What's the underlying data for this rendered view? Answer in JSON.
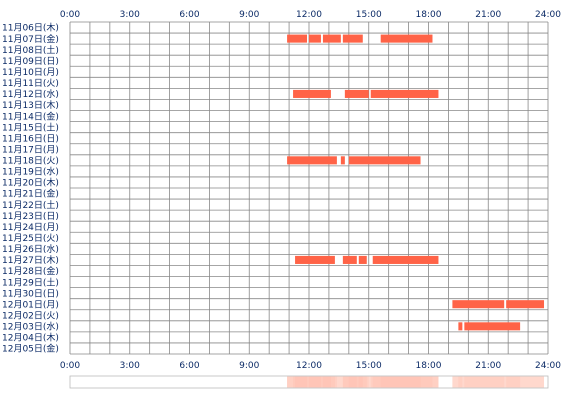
{
  "chart_data": {
    "type": "timeline",
    "x_unit": "hour",
    "xlim": [
      0,
      24
    ],
    "x_ticks": [
      "0:00",
      "3:00",
      "6:00",
      "9:00",
      "12:00",
      "15:00",
      "18:00",
      "21:00",
      "24:00"
    ],
    "rows": [
      {
        "label": "11月06日(木)",
        "segments": []
      },
      {
        "label": "11月07日(金)",
        "segments": [
          [
            10.9,
            11.9
          ],
          [
            12.0,
            12.6
          ],
          [
            12.7,
            13.6
          ],
          [
            13.7,
            14.7
          ],
          [
            15.6,
            18.2
          ]
        ]
      },
      {
        "label": "11月08日(土)",
        "segments": []
      },
      {
        "label": "11月09日(日)",
        "segments": []
      },
      {
        "label": "11月10日(月)",
        "segments": []
      },
      {
        "label": "11月11日(火)",
        "segments": []
      },
      {
        "label": "11月12日(水)",
        "segments": [
          [
            11.2,
            13.1
          ],
          [
            13.8,
            15.0
          ],
          [
            15.1,
            18.5
          ]
        ]
      },
      {
        "label": "11月13日(木)",
        "segments": []
      },
      {
        "label": "11月14日(金)",
        "segments": []
      },
      {
        "label": "11月15日(土)",
        "segments": []
      },
      {
        "label": "11月16日(日)",
        "segments": []
      },
      {
        "label": "11月17日(月)",
        "segments": []
      },
      {
        "label": "11月18日(火)",
        "segments": [
          [
            10.9,
            13.4
          ],
          [
            13.6,
            13.8
          ],
          [
            14.0,
            17.6
          ]
        ]
      },
      {
        "label": "11月19日(水)",
        "segments": []
      },
      {
        "label": "11月20日(木)",
        "segments": []
      },
      {
        "label": "11月21日(金)",
        "segments": []
      },
      {
        "label": "11月22日(土)",
        "segments": []
      },
      {
        "label": "11月23日(日)",
        "segments": []
      },
      {
        "label": "11月24日(月)",
        "segments": []
      },
      {
        "label": "11月25日(火)",
        "segments": []
      },
      {
        "label": "11月26日(水)",
        "segments": []
      },
      {
        "label": "11月27日(木)",
        "segments": [
          [
            11.3,
            13.3
          ],
          [
            13.7,
            14.4
          ],
          [
            14.5,
            14.9
          ],
          [
            15.2,
            18.5
          ]
        ]
      },
      {
        "label": "11月28日(金)",
        "segments": []
      },
      {
        "label": "11月29日(土)",
        "segments": []
      },
      {
        "label": "11月30日(日)",
        "segments": []
      },
      {
        "label": "12月01日(月)",
        "segments": [
          [
            19.2,
            21.8
          ],
          [
            21.9,
            23.8
          ]
        ]
      },
      {
        "label": "12月02日(火)",
        "segments": []
      },
      {
        "label": "12月03日(水)",
        "segments": [
          [
            19.5,
            19.7
          ],
          [
            19.8,
            22.6
          ]
        ]
      },
      {
        "label": "12月04日(木)",
        "segments": []
      },
      {
        "label": "12月05日(金)",
        "segments": []
      }
    ],
    "summary_bar": {
      "segments": [
        [
          10.9,
          18.5
        ],
        [
          19.2,
          23.8
        ]
      ]
    },
    "colors": {
      "bar": "#ff6347",
      "grid": "#888888",
      "label": "#0b2a66",
      "summary_light": "#ffe3da",
      "summary_strong": "#ffb8a6"
    }
  }
}
